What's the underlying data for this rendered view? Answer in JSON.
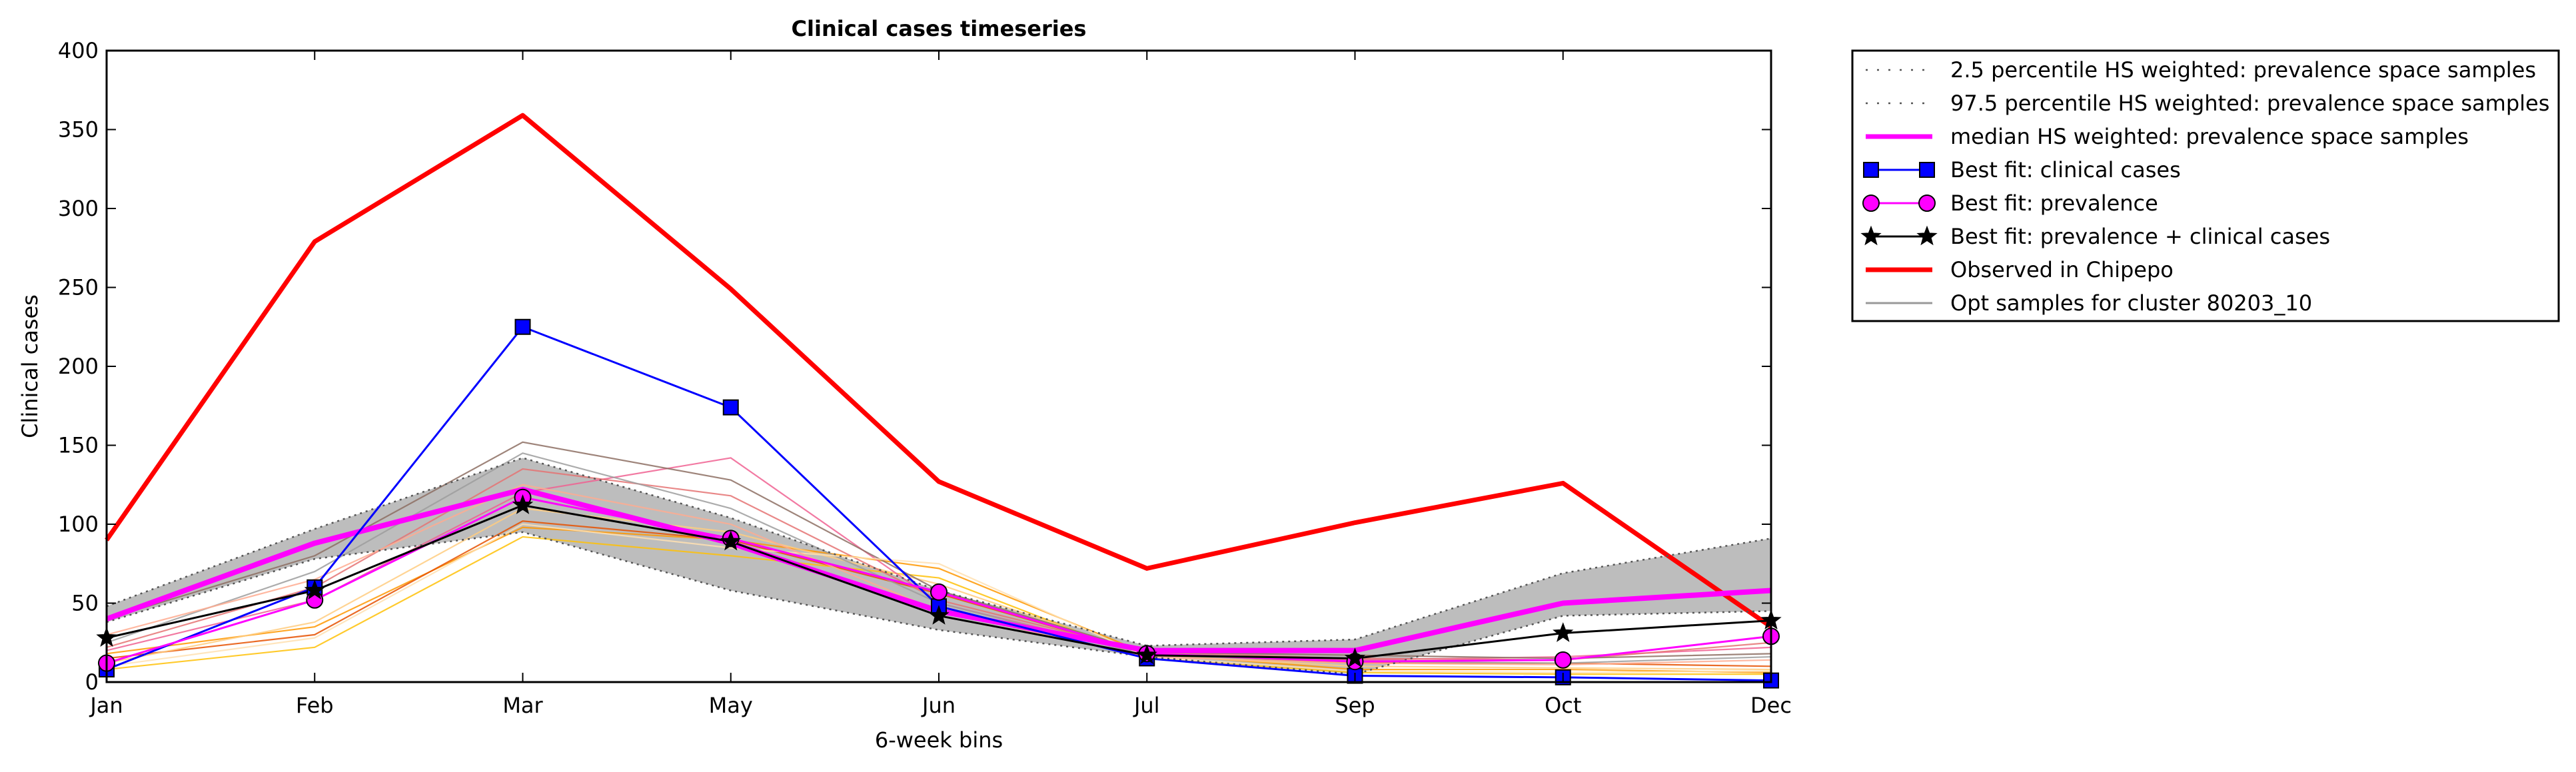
{
  "chart_data": {
    "type": "line",
    "title": "Clinical cases timeseries",
    "xlabel": "6-week bins",
    "ylabel": "Clinical cases",
    "categories": [
      "Jan",
      "Feb",
      "Mar",
      "May",
      "Jun",
      "Jul",
      "Sep",
      "Oct",
      "Dec"
    ],
    "ylim": [
      0,
      400
    ],
    "yticks": [
      "0",
      "50",
      "100",
      "150",
      "200",
      "250",
      "300",
      "350",
      "400"
    ],
    "grid": false,
    "legend_position": "outside-top-right",
    "band": {
      "lower": [
        38,
        78,
        95,
        58,
        33,
        16,
        5,
        42,
        45
      ],
      "upper": [
        48,
        97,
        142,
        104,
        58,
        23,
        27,
        69,
        91
      ],
      "color": "#bdbdbd"
    },
    "background_samples": [
      {
        "color": "#ff9800",
        "values": [
          18,
          35,
          98,
          90,
          72,
          18,
          8,
          8,
          6
        ]
      },
      {
        "color": "#ffc107",
        "values": [
          8,
          22,
          92,
          80,
          66,
          15,
          6,
          5,
          5
        ]
      },
      {
        "color": "#e65100",
        "values": [
          15,
          30,
          102,
          90,
          56,
          18,
          12,
          12,
          10
        ]
      },
      {
        "color": "#ffcc80",
        "values": [
          12,
          38,
          110,
          95,
          62,
          17,
          10,
          9,
          8
        ]
      },
      {
        "color": "#f06292",
        "values": [
          20,
          52,
          120,
          142,
          50,
          18,
          14,
          16,
          22
        ]
      },
      {
        "color": "#e57373",
        "values": [
          22,
          60,
          135,
          118,
          52,
          19,
          15,
          14,
          25
        ]
      },
      {
        "color": "#8d6e63",
        "values": [
          40,
          80,
          152,
          128,
          58,
          19,
          17,
          15,
          18
        ]
      },
      {
        "color": "#9e9e9e",
        "values": [
          25,
          70,
          145,
          110,
          50,
          17,
          13,
          12,
          16
        ]
      },
      {
        "color": "#ffe0b2",
        "values": [
          10,
          28,
          100,
          85,
          75,
          16,
          7,
          6,
          7
        ]
      },
      {
        "color": "#ffab91",
        "values": [
          30,
          65,
          125,
          100,
          45,
          16,
          12,
          11,
          14
        ]
      }
    ],
    "series": [
      {
        "name": "2.5 percentile HS weighted: prevalence space samples",
        "color": "#555555",
        "style": "dotted",
        "marker": "none",
        "values": [
          38,
          78,
          95,
          58,
          33,
          16,
          5,
          42,
          45
        ]
      },
      {
        "name": "97.5 percentile HS weighted: prevalence space samples",
        "color": "#555555",
        "style": "dotted",
        "marker": "none",
        "values": [
          48,
          97,
          142,
          104,
          58,
          23,
          27,
          69,
          91
        ]
      },
      {
        "name": "median HS weighted: prevalence space samples",
        "color": "#ff00ff",
        "style": "solid",
        "marker": "none",
        "values": [
          40,
          88,
          122,
          88,
          45,
          20,
          20,
          50,
          58
        ]
      },
      {
        "name": "Best fit: clinical cases",
        "color": "#0000ff",
        "style": "solid",
        "marker": "square",
        "values": [
          8,
          60,
          225,
          174,
          48,
          15,
          4,
          3,
          1
        ]
      },
      {
        "name": "Best fit: prevalence",
        "color": "#ff00ff",
        "style": "solid",
        "marker": "circle",
        "values": [
          12,
          52,
          117,
          91,
          57,
          18,
          13,
          14,
          29
        ]
      },
      {
        "name": "Best fit: prevalence + clinical cases",
        "color": "#000000",
        "style": "solid",
        "marker": "star",
        "values": [
          28,
          58,
          112,
          89,
          42,
          17,
          15,
          31,
          39
        ]
      },
      {
        "name": "Observed in Chipepo",
        "color": "#ff0000",
        "style": "solid",
        "marker": "none",
        "values": [
          90,
          279,
          359,
          249,
          127,
          72,
          101,
          126,
          35
        ]
      },
      {
        "name": "Opt samples for cluster 80203_10",
        "color": "#999999",
        "style": "solid",
        "marker": "none",
        "values": null
      }
    ]
  }
}
